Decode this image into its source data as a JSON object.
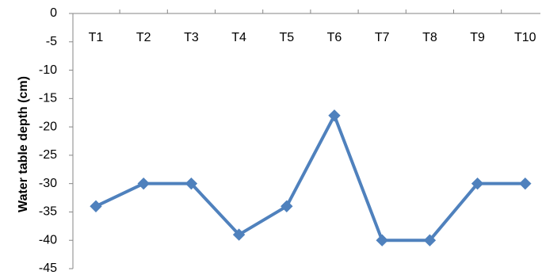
{
  "chart_data": {
    "type": "line",
    "title": "",
    "xlabel": "",
    "ylabel": "Water table depth (cm)",
    "categories": [
      "T1",
      "T2",
      "T3",
      "T4",
      "T5",
      "T6",
      "T7",
      "T8",
      "T9",
      "T10"
    ],
    "series": [
      {
        "values": [
          -34,
          -30,
          -30,
          -39,
          -34,
          -18,
          -40,
          -40,
          -30,
          -30
        ]
      }
    ],
    "ylim": [
      -45,
      0
    ],
    "yticks": [
      0,
      -5,
      -10,
      -15,
      -20,
      -25,
      -30,
      -35,
      -40,
      -45
    ],
    "ytick_labels": [
      "0",
      "-5",
      "-10",
      "-15",
      "-20",
      "-25",
      "-30",
      "-35",
      "-40",
      "-45"
    ],
    "x_axis_position": "top",
    "marker": "diamond",
    "grid": false,
    "legend": "none",
    "colors": {
      "series": "#4F81BD",
      "axis": "#868686"
    }
  }
}
